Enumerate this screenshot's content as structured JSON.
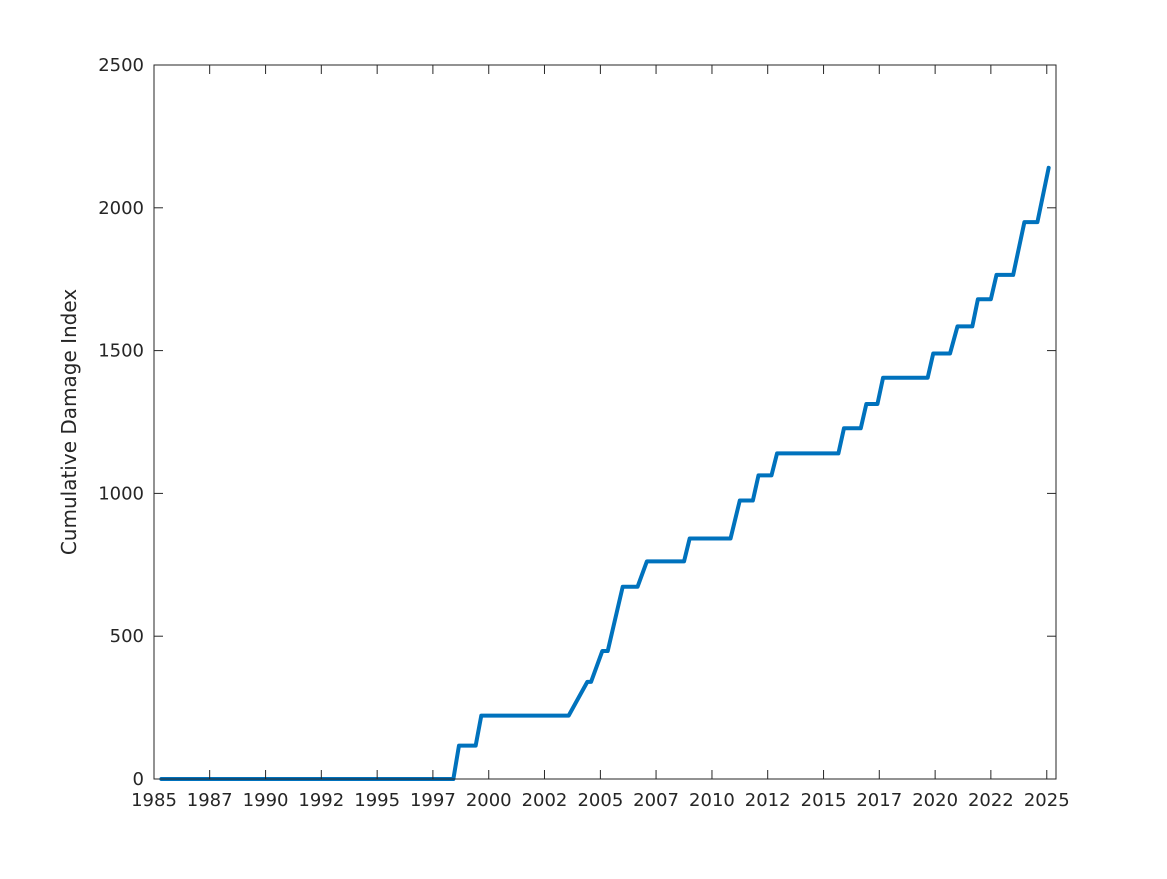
{
  "chart_data": {
    "type": "line",
    "title": "",
    "xlabel": "",
    "ylabel": "Cumulative Damage Index",
    "xlim": [
      "1985-01-01",
      "2025-06-01"
    ],
    "ylim": [
      0,
      2500
    ],
    "x_ticks": [
      {
        "date": "1985-01-01",
        "label": "1985"
      },
      {
        "date": "1987-07-01",
        "label": "1987"
      },
      {
        "date": "1990-01-01",
        "label": "1990"
      },
      {
        "date": "1992-07-01",
        "label": "1992"
      },
      {
        "date": "1995-01-01",
        "label": "1995"
      },
      {
        "date": "1997-07-01",
        "label": "1997"
      },
      {
        "date": "2000-01-01",
        "label": "2000"
      },
      {
        "date": "2002-07-01",
        "label": "2002"
      },
      {
        "date": "2005-01-01",
        "label": "2005"
      },
      {
        "date": "2007-07-01",
        "label": "2007"
      },
      {
        "date": "2010-01-01",
        "label": "2010"
      },
      {
        "date": "2012-07-01",
        "label": "2012"
      },
      {
        "date": "2015-01-01",
        "label": "2015"
      },
      {
        "date": "2017-07-01",
        "label": "2017"
      },
      {
        "date": "2020-01-01",
        "label": "2020"
      },
      {
        "date": "2022-07-01",
        "label": "2022"
      },
      {
        "date": "2025-01-01",
        "label": "2025"
      }
    ],
    "y_ticks": [
      {
        "value": 0,
        "label": "0"
      },
      {
        "value": 500,
        "label": "500"
      },
      {
        "value": 1000,
        "label": "1000"
      },
      {
        "value": 1500,
        "label": "1500"
      },
      {
        "value": 2000,
        "label": "2000"
      },
      {
        "value": 2500,
        "label": "2500"
      }
    ],
    "grid": false,
    "line_color": "#0072BD",
    "series": [
      {
        "x": [
          "1985-05-01",
          "1998-06-01",
          "1998-09-01",
          "1999-06-01",
          "1999-09-01",
          "2003-05-01",
          "2003-08-01",
          "2004-06-01",
          "2004-08-01",
          "2005-02-01",
          "2005-05-01",
          "2006-01-01",
          "2006-09-01",
          "2007-02-01",
          "2008-10-01",
          "2009-01-01",
          "2010-11-01",
          "2011-04-01",
          "2011-11-01",
          "2012-02-01",
          "2012-09-01",
          "2012-12-01",
          "2015-09-01",
          "2015-12-01",
          "2016-09-01",
          "2016-12-01",
          "2017-06-01",
          "2017-09-01",
          "2019-09-01",
          "2019-12-01",
          "2020-09-01",
          "2021-01-01",
          "2021-09-01",
          "2021-12-01",
          "2022-07-01",
          "2022-10-01",
          "2023-07-01",
          "2024-01-01",
          "2024-08-01",
          "2025-02-01"
        ],
        "y": [
          0,
          0,
          117,
          117,
          222,
          222,
          222,
          340,
          340,
          448,
          448,
          673,
          673,
          762,
          762,
          842,
          842,
          975,
          975,
          1063,
          1063,
          1140,
          1140,
          1228,
          1228,
          1313,
          1313,
          1405,
          1405,
          1490,
          1490,
          1585,
          1585,
          1680,
          1680,
          1765,
          1765,
          1950,
          1950,
          2140
        ]
      }
    ]
  }
}
